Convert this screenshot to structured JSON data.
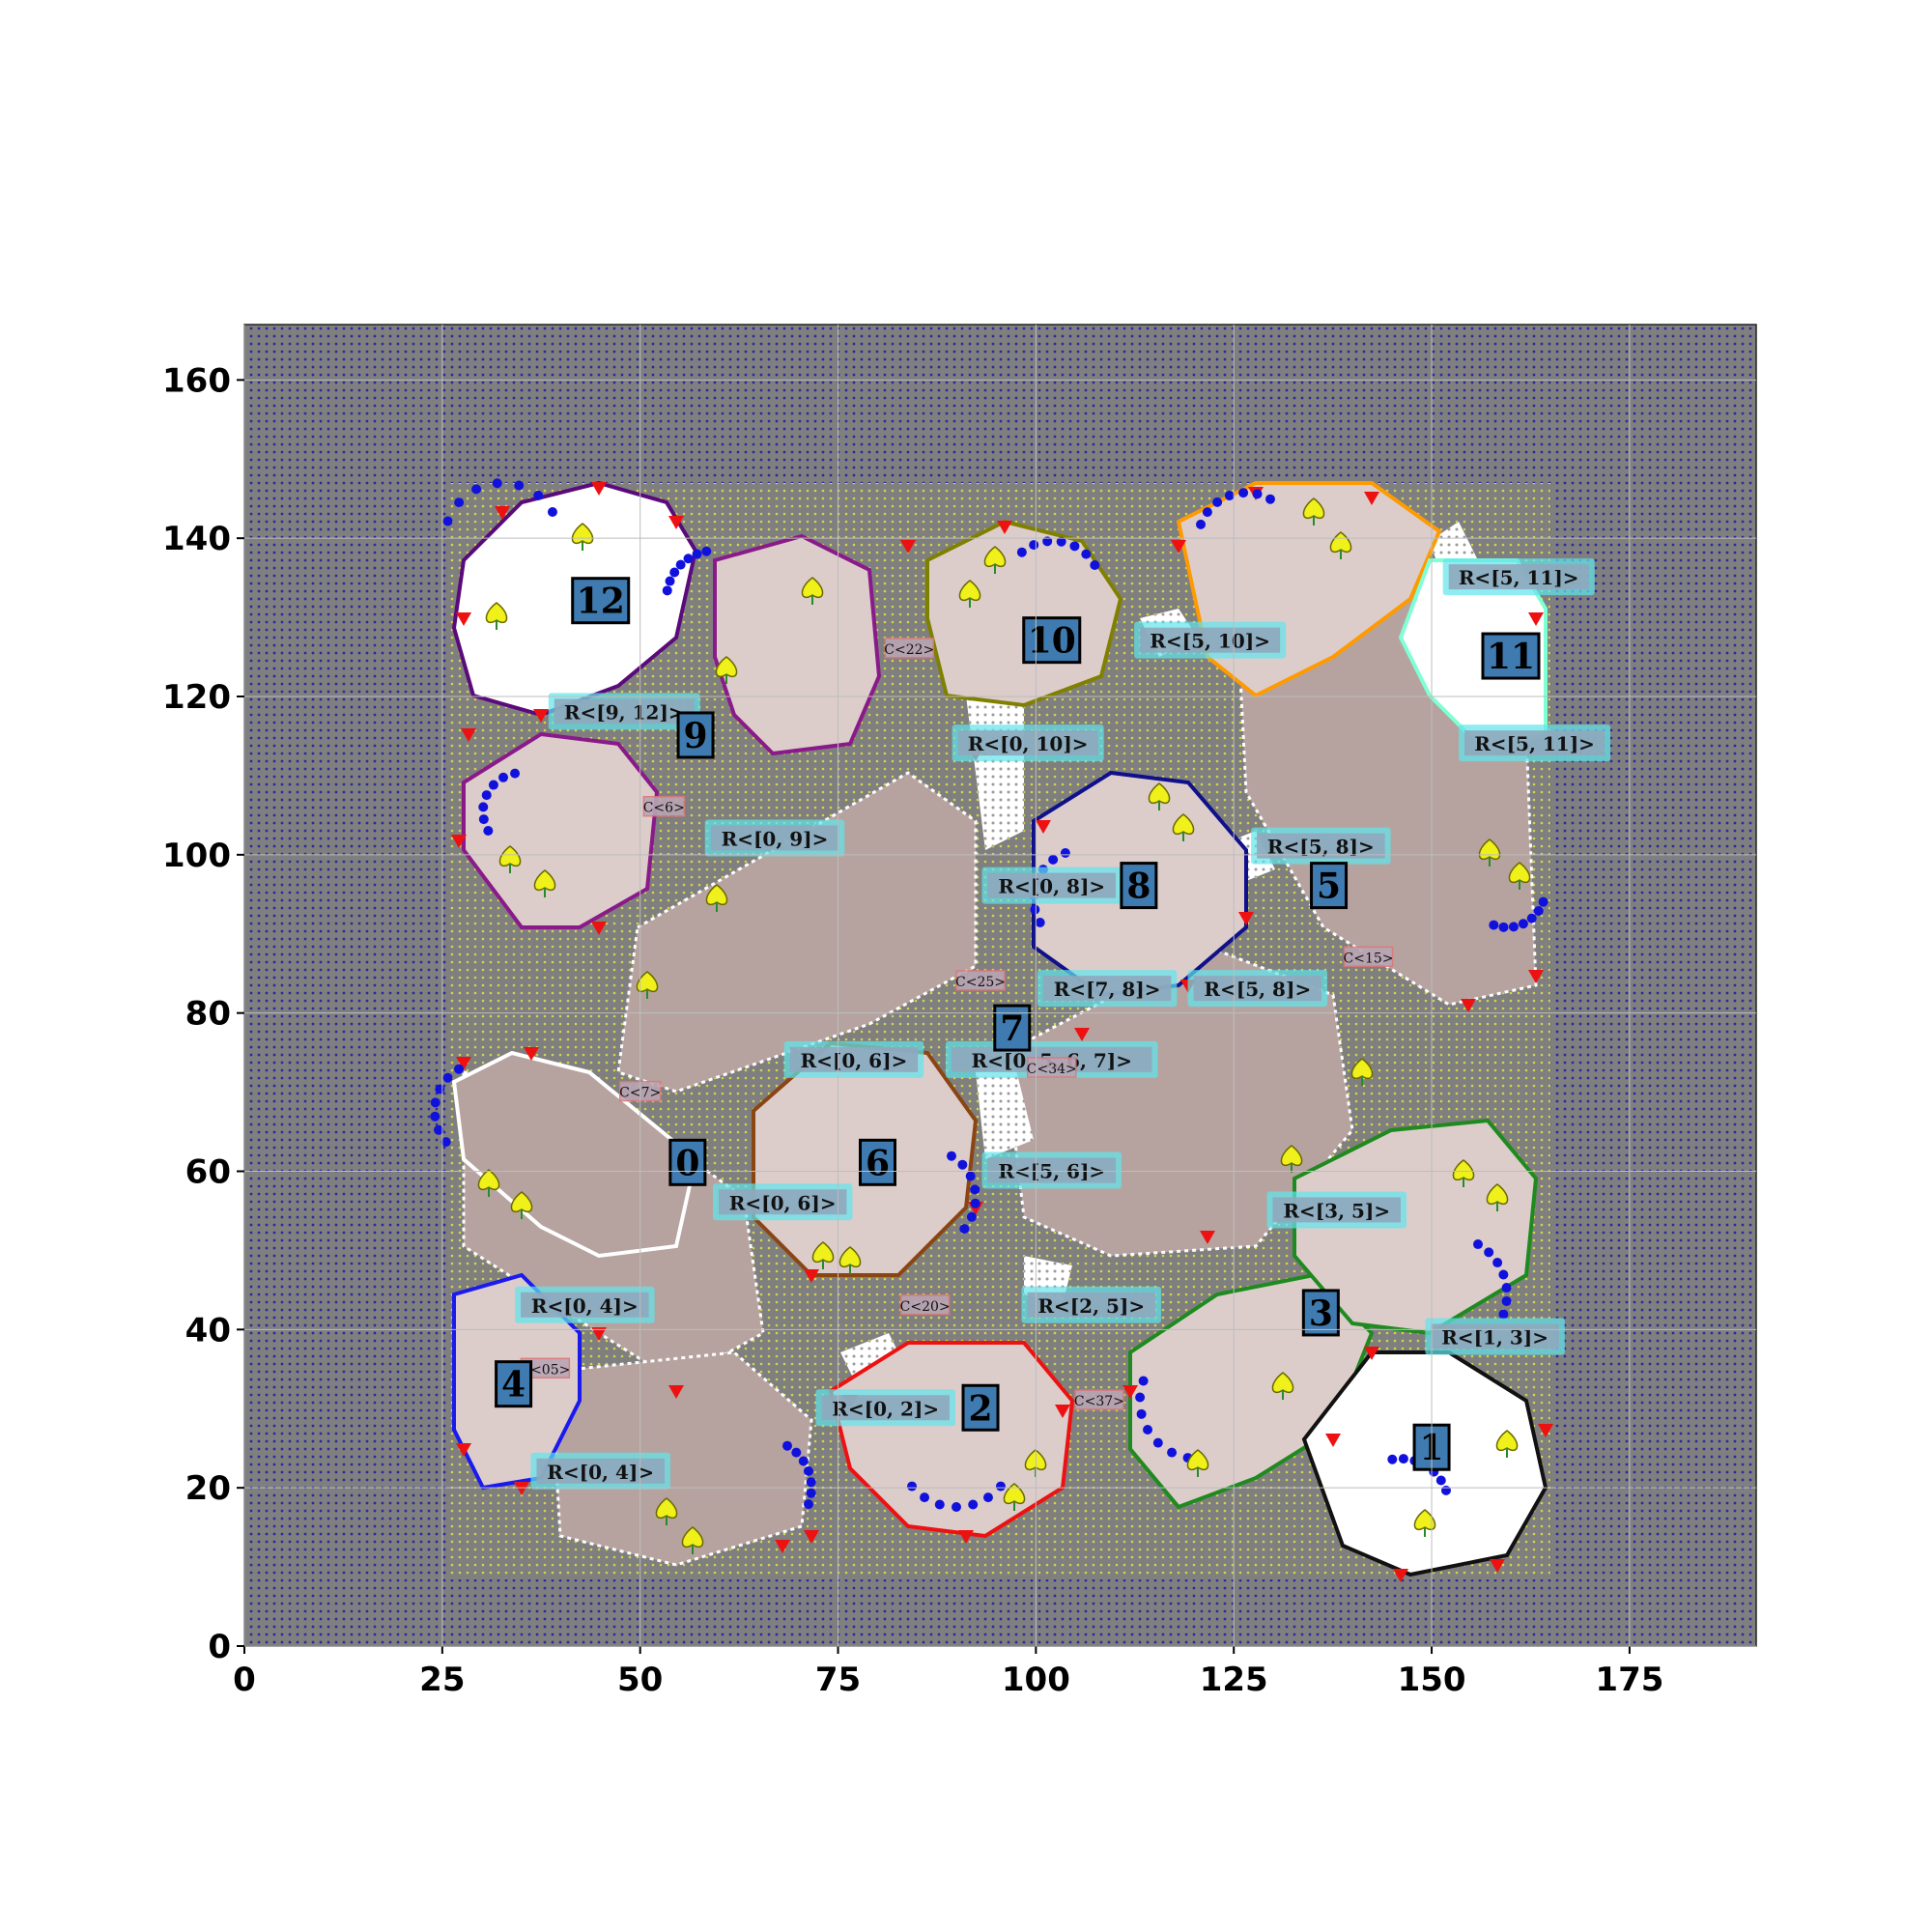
{
  "colors": {
    "background_wall": "#7f7f7f",
    "wall_dot": "#2a2aa0",
    "floor_dot": "#d4d44a",
    "room_fill": "#dccdcb",
    "corridor_fill": "#b6a39f",
    "white_room": "#ffffff",
    "door_marker": "#ee1111",
    "lamp": "#1111dd",
    "plant": "#f0f01a",
    "label_box": "#3f7bb0",
    "region_glow": "#5fe6ec"
  },
  "axes": {
    "x_ticks": [
      "0",
      "25",
      "50",
      "75",
      "100",
      "125",
      "150",
      "175"
    ],
    "y_ticks": [
      "0",
      "20",
      "40",
      "60",
      "80",
      "100",
      "120",
      "140",
      "160"
    ],
    "xlim": [
      0,
      191
    ],
    "ylim": [
      0,
      167
    ],
    "grid": true
  },
  "rooms": [
    {
      "id": "0",
      "x": 56,
      "y": 61,
      "color": "#ffffff"
    },
    {
      "id": "1",
      "x": 150,
      "y": 25,
      "color": "#111111"
    },
    {
      "id": "2",
      "x": 93,
      "y": 30,
      "color": "#ee1111"
    },
    {
      "id": "3",
      "x": 136,
      "y": 42,
      "color": "#1f8a1f"
    },
    {
      "id": "4",
      "x": 34,
      "y": 33,
      "color": "#1a1aee"
    },
    {
      "id": "5",
      "x": 137,
      "y": 96,
      "color": "#ff9a00"
    },
    {
      "id": "6",
      "x": 80,
      "y": 61,
      "color": "#8b4513"
    },
    {
      "id": "7",
      "x": 97,
      "y": 78,
      "color": "#22bb22"
    },
    {
      "id": "8",
      "x": 113,
      "y": 96,
      "color": "#10108a"
    },
    {
      "id": "9",
      "x": 57,
      "y": 115,
      "color": "#8a1a8a"
    },
    {
      "id": "10",
      "x": 102,
      "y": 127,
      "color": "#808000"
    },
    {
      "id": "11",
      "x": 160,
      "y": 125,
      "color": "#7fffd4"
    },
    {
      "id": "12",
      "x": 45,
      "y": 132,
      "color": "#5a0a7a"
    }
  ],
  "region_labels": [
    {
      "text": "R<[9, 12]>",
      "x": 48,
      "y": 118
    },
    {
      "text": "R<[0, 9]>",
      "x": 67,
      "y": 102
    },
    {
      "text": "R<[0, 10]>",
      "x": 99,
      "y": 114
    },
    {
      "text": "R<[5, 10]>",
      "x": 122,
      "y": 127
    },
    {
      "text": "R<[5, 11]>",
      "x": 161,
      "y": 135
    },
    {
      "text": "R<[5, 11]>",
      "x": 163,
      "y": 114
    },
    {
      "text": "R<[5, 8]>",
      "x": 136,
      "y": 101
    },
    {
      "text": "R<[0, 8]>",
      "x": 102,
      "y": 96
    },
    {
      "text": "R<[7, 8]>",
      "x": 109,
      "y": 83
    },
    {
      "text": "R<[5, 8]>",
      "x": 128,
      "y": 83
    },
    {
      "text": "R<[0, 6]>",
      "x": 77,
      "y": 74
    },
    {
      "text": "R<[0, 5, 6, 7]>",
      "x": 102,
      "y": 74
    },
    {
      "text": "R<[5, 6]>",
      "x": 102,
      "y": 60
    },
    {
      "text": "R<[0, 6]>",
      "x": 68,
      "y": 56
    },
    {
      "text": "R<[3, 5]>",
      "x": 138,
      "y": 55
    },
    {
      "text": "R<[0, 4]>",
      "x": 43,
      "y": 43
    },
    {
      "text": "R<[2, 5]>",
      "x": 107,
      "y": 43
    },
    {
      "text": "R<[1, 3]>",
      "x": 158,
      "y": 39
    },
    {
      "text": "R<[0, 2]>",
      "x": 81,
      "y": 30
    },
    {
      "text": "R<[0, 4]>",
      "x": 45,
      "y": 22
    }
  ],
  "connector_labels": [
    {
      "text": "C<6>",
      "x": 53,
      "y": 106
    },
    {
      "text": "C<7>",
      "x": 50,
      "y": 70
    },
    {
      "text": "C<25>",
      "x": 93,
      "y": 84
    },
    {
      "text": "C<15>",
      "x": 142,
      "y": 87
    },
    {
      "text": "C<20>",
      "x": 86,
      "y": 43
    },
    {
      "text": "C<37>",
      "x": 108,
      "y": 31
    },
    {
      "text": "C<05>",
      "x": 38,
      "y": 35
    },
    {
      "text": "C<22>",
      "x": 84,
      "y": 126
    },
    {
      "text": "C<34>",
      "x": 102,
      "y": 73
    }
  ]
}
